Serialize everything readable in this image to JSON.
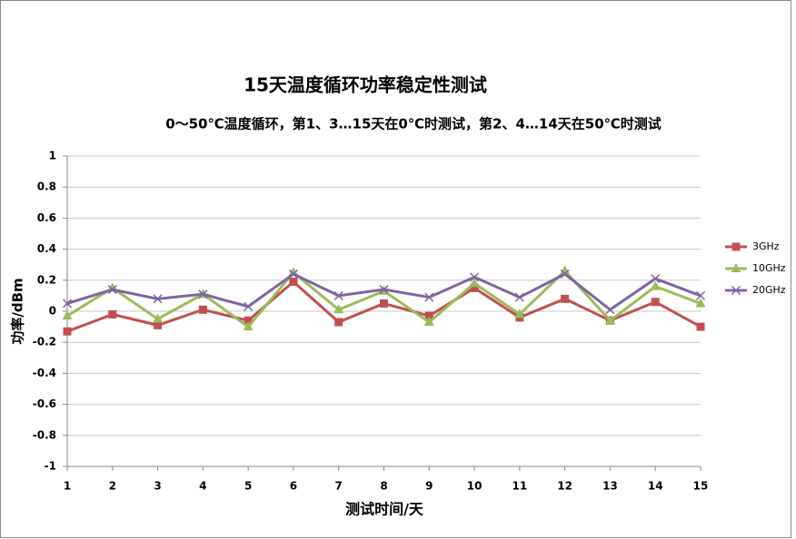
{
  "chart_data": {
    "type": "line",
    "title": "15天温度循环功率稳定性测试",
    "subtitle": "0～50℃温度循环，第1、3…15天在0℃时测试，第2、4…14天在50℃时测试",
    "x_label": "测试时间/天",
    "y_label": "功率/dBm",
    "x": [
      1,
      2,
      3,
      4,
      5,
      6,
      7,
      8,
      9,
      10,
      11,
      12,
      13,
      14,
      15
    ],
    "xlim": [
      1,
      15
    ],
    "xticks": [
      1,
      2,
      3,
      4,
      5,
      6,
      7,
      8,
      9,
      10,
      11,
      12,
      13,
      14,
      15
    ],
    "ylim": [
      -1,
      1
    ],
    "yticks": [
      -1,
      -0.8,
      -0.6,
      -0.4,
      -0.2,
      0,
      0.2,
      0.4,
      0.6,
      0.8,
      1
    ],
    "grid": true,
    "legend": "right",
    "series": [
      {
        "name": "3GHz",
        "color": "#c0504d",
        "marker": "square",
        "values": [
          -0.13,
          -0.02,
          -0.09,
          0.01,
          -0.06,
          0.19,
          -0.07,
          0.05,
          -0.03,
          0.15,
          -0.04,
          0.08,
          -0.06,
          0.06,
          -0.1
        ]
      },
      {
        "name": "10GHz",
        "color": "#9bbb59",
        "marker": "triangle",
        "values": [
          -0.03,
          0.15,
          -0.05,
          0.11,
          -0.1,
          0.25,
          0.01,
          0.13,
          -0.07,
          0.18,
          -0.02,
          0.26,
          -0.06,
          0.16,
          0.05
        ]
      },
      {
        "name": "20GHz",
        "color": "#8064a2",
        "marker": "x",
        "values": [
          0.05,
          0.14,
          0.08,
          0.11,
          0.03,
          0.24,
          0.1,
          0.14,
          0.09,
          0.22,
          0.09,
          0.24,
          0.01,
          0.21,
          0.1
        ]
      }
    ]
  }
}
